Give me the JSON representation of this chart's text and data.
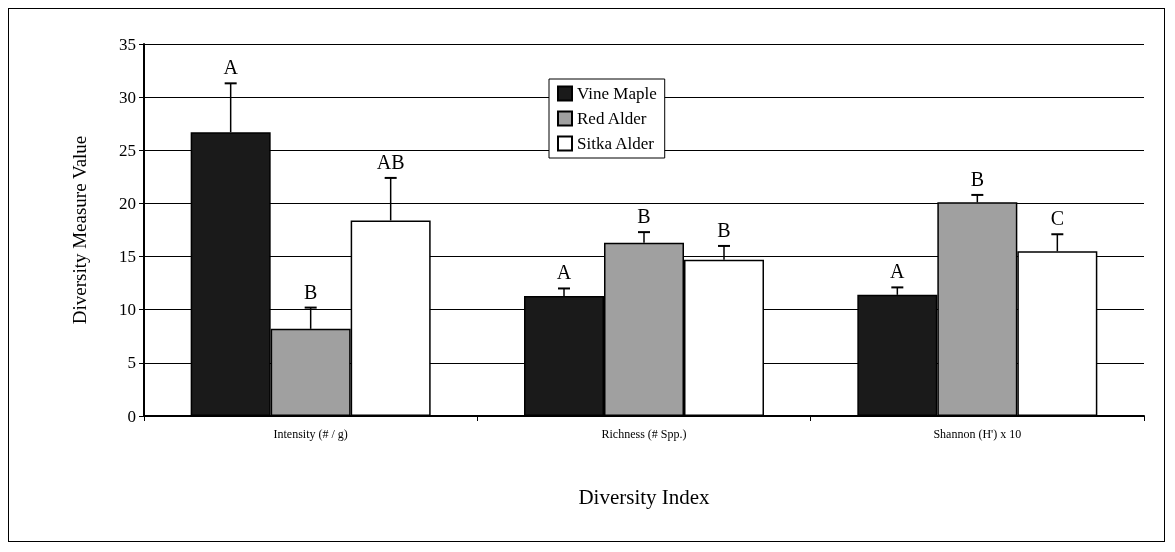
{
  "chart_data": {
    "type": "bar",
    "categories": [
      "Intensity (# / g)",
      "Richness (# Spp.)",
      "Shannon (H') x 10"
    ],
    "xlabel": "Diversity Index",
    "ylabel": "Diversity Measure Value",
    "series": [
      {
        "name": "Vine Maple",
        "color": "#1a1a1a",
        "values": [
          26.7,
          11.3,
          11.4
        ],
        "errors": [
          [
            26.7,
            31.3
          ],
          [
            11.3,
            12.0
          ],
          [
            11.4,
            12.1
          ]
        ],
        "value_labels": [
          "A",
          "A",
          "A"
        ]
      },
      {
        "name": "Red Alder",
        "color": "#a0a0a0",
        "values": [
          8.2,
          16.3,
          20.1
        ],
        "errors": [
          [
            8.2,
            10.2
          ],
          [
            16.3,
            17.3
          ],
          [
            20.1,
            20.8
          ]
        ],
        "value_labels": [
          "B",
          "B",
          "B"
        ]
      },
      {
        "name": "Sitka Alder",
        "color": "#ffffff",
        "values": [
          18.4,
          14.7,
          15.5
        ],
        "errors": [
          [
            18.4,
            22.4
          ],
          [
            14.7,
            16.0
          ],
          [
            15.5,
            17.1
          ]
        ],
        "value_labels": [
          "AB",
          "B",
          "C"
        ]
      }
    ],
    "ylim": [
      0,
      35
    ],
    "yticks": [
      0,
      5,
      10,
      15,
      20,
      25,
      30,
      35
    ],
    "grid": "y",
    "legend": "top"
  }
}
